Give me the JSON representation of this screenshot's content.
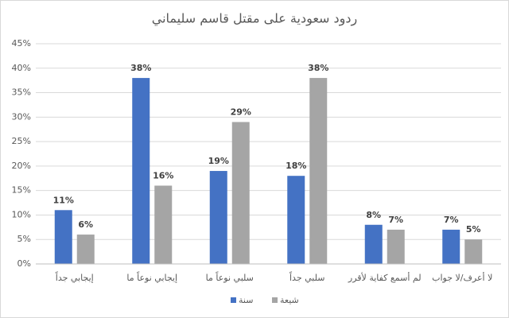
{
  "chart_data": {
    "type": "bar",
    "title": "ردود سعودية على مقتل قاسم سليماني",
    "categories": [
      "إيجابي جداً",
      "إيجابي نوعاً ما",
      "سلبي نوعاً ما",
      "سلبي جداً",
      "لم أسمع كفاية لأقرر",
      "لا أعرف/لا جواب"
    ],
    "series": [
      {
        "name": "سنة",
        "color": "#4472c4",
        "values": [
          11,
          38,
          19,
          18,
          8,
          7
        ],
        "value_labels": [
          "11%",
          "38%",
          "19%",
          "18%",
          "8%",
          "7%"
        ]
      },
      {
        "name": "شيعة",
        "color": "#a5a5a5",
        "values": [
          6,
          16,
          29,
          38,
          7,
          5
        ],
        "value_labels": [
          "6%",
          "16%",
          "29%",
          "38%",
          "7%",
          "5%"
        ]
      }
    ],
    "ylim": [
      0,
      45
    ],
    "yticks": [
      {
        "value": 0,
        "label": "0%"
      },
      {
        "value": 5,
        "label": "5%"
      },
      {
        "value": 10,
        "label": "10%"
      },
      {
        "value": 15,
        "label": "15%"
      },
      {
        "value": 20,
        "label": "20%"
      },
      {
        "value": 25,
        "label": "25%"
      },
      {
        "value": 30,
        "label": "30%"
      },
      {
        "value": 35,
        "label": "35%"
      },
      {
        "value": 40,
        "label": "40%"
      },
      {
        "value": 45,
        "label": "45%"
      }
    ],
    "grid": true,
    "legend": "bottom"
  }
}
